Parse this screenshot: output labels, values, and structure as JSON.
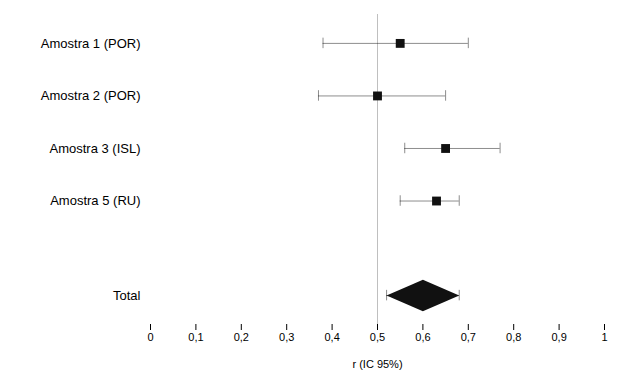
{
  "chart_data": {
    "type": "forest",
    "categories": [
      "Amostra 1 (POR)",
      "Amostra 2 (POR)",
      "Amostra 3 (ISL)",
      "Amostra 5 (RU)"
    ],
    "values": [
      0.55,
      0.5,
      0.65,
      0.63
    ],
    "ci_low": [
      0.38,
      0.37,
      0.56,
      0.55
    ],
    "ci_high": [
      0.7,
      0.65,
      0.77,
      0.68
    ],
    "total": {
      "label": "Total",
      "value": 0.6,
      "ci_low": 0.52,
      "ci_high": 0.68
    },
    "reference_line": 0.5,
    "color": "#111111",
    "xlabel": "r (IC 95%)",
    "xlim": [
      0,
      1
    ],
    "xticks": [
      0,
      {
        "value": 0.1,
        "label": "0,1"
      },
      {
        "value": 0.2,
        "label": "0,2"
      },
      {
        "value": 0.3,
        "label": "0,3"
      },
      {
        "value": 0.4,
        "label": "0,4"
      },
      {
        "value": 0.5,
        "label": "0,5"
      },
      {
        "value": 0.6,
        "label": "0,6"
      },
      {
        "value": 0.7,
        "label": "0,7"
      },
      {
        "value": 0.8,
        "label": "0,8"
      },
      {
        "value": 0.9,
        "label": "0,9"
      },
      1
    ],
    "grid": false,
    "tick_labels": "x"
  }
}
